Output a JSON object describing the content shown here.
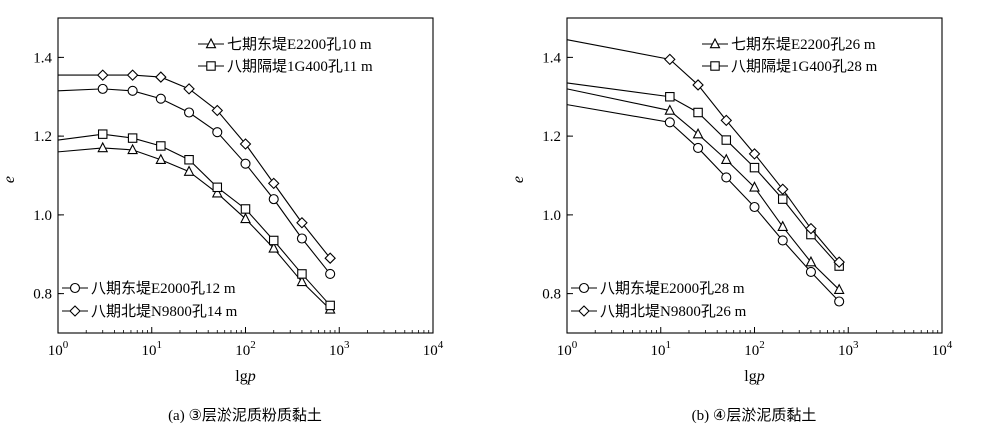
{
  "chart_data": [
    {
      "type": "line",
      "panel": "a",
      "caption": "(a) ③层淤泥质粉质黏土",
      "xlabel": "lgp",
      "ylabel": "e",
      "xscale": "log",
      "xlim": [
        1,
        10000
      ],
      "ylim": [
        0.7,
        1.5
      ],
      "x_ticks": [
        1,
        10,
        100,
        1000,
        10000
      ],
      "x_tick_labels": [
        {
          "base": "10",
          "exp": "0"
        },
        {
          "base": "10",
          "exp": "1"
        },
        {
          "base": "10",
          "exp": "2"
        },
        {
          "base": "10",
          "exp": "3"
        },
        {
          "base": "10",
          "exp": "4"
        }
      ],
      "y_ticks": [
        0.8,
        1.0,
        1.2,
        1.4
      ],
      "y_tick_labels": [
        "0.8",
        "1.0",
        "1.2",
        "1.4"
      ],
      "grid": false,
      "legend_top": "top-right",
      "legend_bottom": "bottom-left",
      "series": [
        {
          "name": "七期东堤E2200孔10 m",
          "marker": "triangle",
          "legend": "top",
          "x": [
            1,
            3,
            6.25,
            12.5,
            25,
            50,
            100,
            200,
            400,
            800
          ],
          "y": [
            1.16,
            1.17,
            1.165,
            1.14,
            1.11,
            1.055,
            0.99,
            0.915,
            0.83,
            0.76
          ]
        },
        {
          "name": "八期隔堤1G400孔11 m",
          "marker": "square",
          "legend": "top",
          "x": [
            1,
            3,
            6.25,
            12.5,
            25,
            50,
            100,
            200,
            400,
            800
          ],
          "y": [
            1.19,
            1.205,
            1.195,
            1.175,
            1.14,
            1.07,
            1.015,
            0.935,
            0.85,
            0.77
          ]
        },
        {
          "name": "八期东堤E2000孔12 m",
          "marker": "circle",
          "legend": "bottom",
          "x": [
            1,
            3,
            6.25,
            12.5,
            25,
            50,
            100,
            200,
            400,
            800
          ],
          "y": [
            1.315,
            1.32,
            1.315,
            1.295,
            1.26,
            1.21,
            1.13,
            1.04,
            0.94,
            0.85
          ]
        },
        {
          "name": "八期北堤N9800孔14 m",
          "marker": "diamond",
          "legend": "bottom",
          "x": [
            1,
            3,
            6.25,
            12.5,
            25,
            50,
            100,
            200,
            400,
            800
          ],
          "y": [
            1.355,
            1.355,
            1.355,
            1.35,
            1.32,
            1.265,
            1.18,
            1.08,
            0.98,
            0.89
          ]
        }
      ]
    },
    {
      "type": "line",
      "panel": "b",
      "caption": "(b) ④层淤泥质黏土",
      "xlabel": "lgp",
      "ylabel": "e",
      "xscale": "log",
      "xlim": [
        1,
        10000
      ],
      "ylim": [
        0.7,
        1.5
      ],
      "x_ticks": [
        1,
        10,
        100,
        1000,
        10000
      ],
      "x_tick_labels": [
        {
          "base": "10",
          "exp": "0"
        },
        {
          "base": "10",
          "exp": "1"
        },
        {
          "base": "10",
          "exp": "2"
        },
        {
          "base": "10",
          "exp": "3"
        },
        {
          "base": "10",
          "exp": "4"
        }
      ],
      "y_ticks": [
        0.8,
        1.0,
        1.2,
        1.4
      ],
      "y_tick_labels": [
        "0.8",
        "1.0",
        "1.2",
        "1.4"
      ],
      "grid": false,
      "legend_top": "top-right",
      "legend_bottom": "bottom-left",
      "series": [
        {
          "name": "七期东堤E2200孔26 m",
          "marker": "triangle",
          "legend": "top",
          "x": [
            1,
            12.5,
            25,
            50,
            100,
            200,
            400,
            800
          ],
          "y": [
            1.32,
            1.265,
            1.205,
            1.14,
            1.07,
            0.97,
            0.88,
            0.81
          ]
        },
        {
          "name": "八期隔堤1G400孔28 m",
          "marker": "square",
          "legend": "top",
          "x": [
            1,
            12.5,
            25,
            50,
            100,
            200,
            400,
            800
          ],
          "y": [
            1.335,
            1.3,
            1.26,
            1.19,
            1.12,
            1.04,
            0.95,
            0.87
          ]
        },
        {
          "name": "八期东堤E2000孔28 m",
          "marker": "circle",
          "legend": "bottom",
          "x": [
            1,
            12.5,
            25,
            50,
            100,
            200,
            400,
            800
          ],
          "y": [
            1.28,
            1.235,
            1.17,
            1.095,
            1.02,
            0.935,
            0.855,
            0.78
          ]
        },
        {
          "name": "八期北堤N9800孔26 m",
          "marker": "diamond",
          "legend": "bottom",
          "x": [
            1,
            12.5,
            25,
            50,
            100,
            200,
            400,
            800
          ],
          "y": [
            1.445,
            1.395,
            1.33,
            1.24,
            1.155,
            1.065,
            0.965,
            0.88
          ]
        }
      ]
    }
  ]
}
